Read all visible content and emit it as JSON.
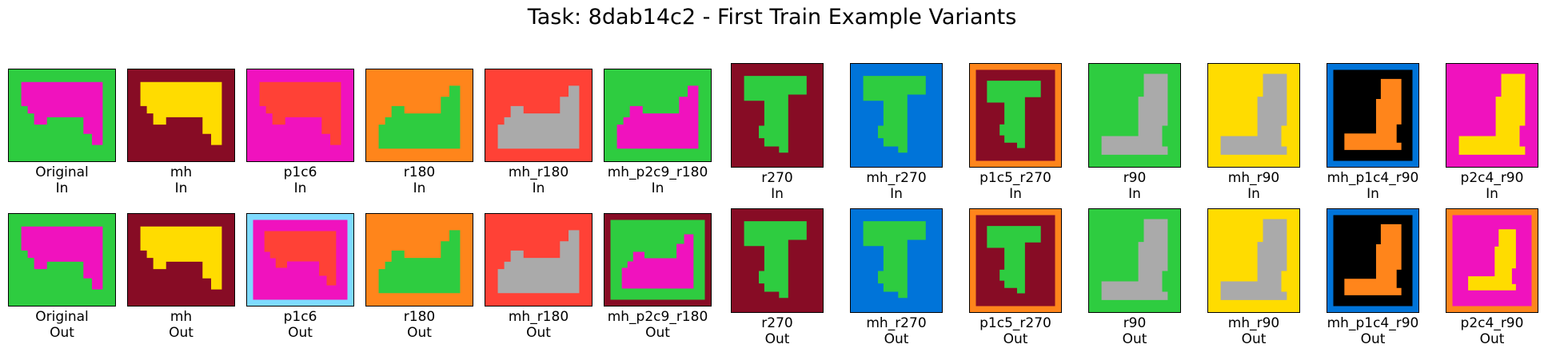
{
  "title": "Task: 8dab14c2 - First Train Example Variants",
  "palette": {
    "black": "#000000",
    "blue": "#0074D9",
    "red": "#FF4136",
    "green": "#2ECC40",
    "yellow": "#FFDC00",
    "gray": "#AAAAAA",
    "magenta": "#F012BE",
    "orange": "#FF851B",
    "cyan": "#7FDBFF",
    "maroon": "#870C25"
  },
  "pairs": [
    {
      "name": "Original",
      "bg": "green",
      "fg": "magenta",
      "outer": "",
      "out_outer": "",
      "out_wrap": "",
      "in_shape": "horiz",
      "out_shape": "horiz",
      "in_label": "In",
      "out_label": "Out"
    },
    {
      "name": "mh",
      "bg": "maroon",
      "fg": "yellow",
      "outer": "",
      "out_outer": "",
      "out_wrap": "",
      "in_shape": "horiz",
      "out_shape": "horiz",
      "in_label": "In",
      "out_label": "Out"
    },
    {
      "name": "p1c6",
      "bg": "magenta",
      "fg": "red",
      "outer": "",
      "out_outer": "cyan",
      "out_wrap": "",
      "in_shape": "horiz",
      "out_shape": "horiz",
      "in_label": "In",
      "out_label": "Out"
    },
    {
      "name": "r180",
      "bg": "orange",
      "fg": "green",
      "outer": "",
      "out_outer": "",
      "out_wrap": "",
      "in_shape": "horiz_r",
      "out_shape": "horiz_r",
      "in_label": "In",
      "out_label": "Out"
    },
    {
      "name": "mh_r180",
      "bg": "red",
      "fg": "gray",
      "outer": "",
      "out_outer": "",
      "out_wrap": "",
      "in_shape": "horiz_r",
      "out_shape": "horiz_r",
      "in_label": "In",
      "out_label": "Out"
    },
    {
      "name": "mh_p2c9_r180",
      "bg": "green",
      "fg": "magenta",
      "outer": "",
      "out_outer": "maroon",
      "out_wrap": "",
      "in_shape": "horiz_r",
      "out_shape": "horiz_r",
      "in_label": "In",
      "out_label": "Out"
    },
    {
      "name": "r270",
      "bg": "maroon",
      "fg": "green",
      "outer": "",
      "out_outer": "",
      "out_wrap": "",
      "in_shape": "vert",
      "out_shape": "vert",
      "in_label": "In",
      "out_label": "Out"
    },
    {
      "name": "mh_r270",
      "bg": "blue",
      "fg": "green",
      "outer": "",
      "out_outer": "",
      "out_wrap": "",
      "in_shape": "vert",
      "out_shape": "vert",
      "in_label": "In",
      "out_label": "Out"
    },
    {
      "name": "p1c5_r270",
      "bg": "maroon",
      "fg": "green",
      "outer": "orange",
      "out_outer": "orange",
      "out_wrap": "",
      "in_shape": "vert",
      "out_shape": "vert",
      "in_label": "In",
      "out_label": "Out"
    },
    {
      "name": "r90",
      "bg": "green",
      "fg": "gray",
      "outer": "",
      "out_outer": "",
      "out_wrap": "",
      "in_shape": "vert_r",
      "out_shape": "vert_r",
      "in_label": "In",
      "out_label": "Out"
    },
    {
      "name": "mh_r90",
      "bg": "yellow",
      "fg": "gray",
      "outer": "",
      "out_outer": "",
      "out_wrap": "",
      "in_shape": "vert_r",
      "out_shape": "vert_r",
      "in_label": "In",
      "out_label": "Out"
    },
    {
      "name": "mh_p1c4_r90",
      "bg": "black",
      "fg": "orange",
      "outer": "blue",
      "out_outer": "blue",
      "out_wrap": "",
      "in_shape": "vert_r",
      "out_shape": "vert_r",
      "in_label": "In",
      "out_label": "Out"
    },
    {
      "name": "p2c4_r90",
      "bg": "magenta",
      "fg": "yellow",
      "outer": "",
      "out_outer": "orange",
      "out_wrap": "magenta",
      "in_shape": "vert_r",
      "out_shape": "vert_r",
      "in_label": "In",
      "out_label": "Out"
    }
  ]
}
